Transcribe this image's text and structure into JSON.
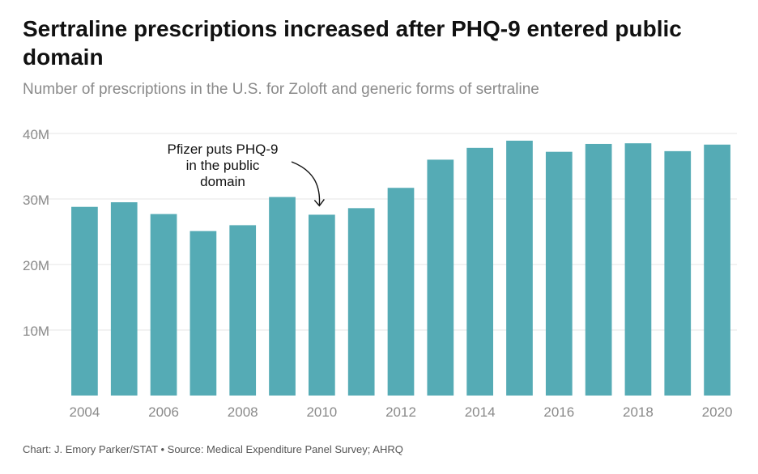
{
  "title": "Sertraline prescriptions increased after PHQ-9 entered public domain",
  "subtitle": "Number of prescriptions in the U.S. for Zoloft and generic forms of sertraline",
  "footer": "Chart: J. Emory Parker/STAT • Source: Medical Expenditure Panel Survey; AHRQ",
  "colors": {
    "bar": "#55abb5",
    "grid": "#e6e6e6",
    "tick": "#8a8a8a",
    "annotation": "#111111"
  },
  "chart_data": {
    "type": "bar",
    "title": "Sertraline prescriptions increased after PHQ-9 entered public domain",
    "subtitle": "Number of prescriptions in the U.S. for Zoloft and generic forms of sertraline",
    "xlabel": "",
    "ylabel": "",
    "categories": [
      "2004",
      "2005",
      "2006",
      "2007",
      "2008",
      "2009",
      "2010",
      "2011",
      "2012",
      "2013",
      "2014",
      "2015",
      "2016",
      "2017",
      "2018",
      "2019",
      "2020"
    ],
    "values": [
      28.8,
      29.5,
      27.7,
      25.1,
      26.0,
      30.3,
      27.6,
      28.6,
      31.7,
      36.0,
      37.8,
      38.9,
      37.2,
      38.4,
      38.5,
      37.3,
      38.3
    ],
    "unit": "M",
    "ylim": [
      0,
      40
    ],
    "y_ticks": [
      "10M",
      "20M",
      "30M",
      "40M"
    ],
    "x_ticks": [
      "2004",
      "2006",
      "2008",
      "2010",
      "2012",
      "2014",
      "2016",
      "2018",
      "2020"
    ],
    "grid": true,
    "legend": "none",
    "annotation": {
      "target": "2010",
      "lines": [
        "Pfizer puts PHQ-9",
        "in the public",
        "domain"
      ]
    }
  }
}
